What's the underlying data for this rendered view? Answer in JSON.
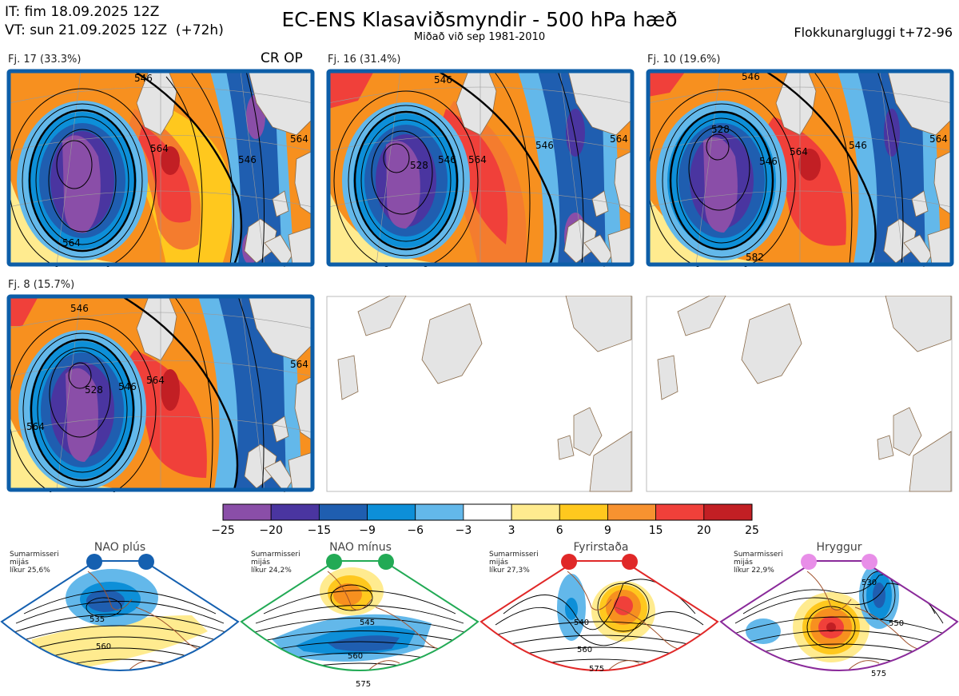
{
  "header": {
    "it": "IT: fim 18.09.2025 12Z",
    "vt": "VT: sun 21.09.2025 12Z  (+72h)",
    "title": "EC-ENS Klasaviðsmyndir - 500 hPa hæð",
    "subtitle": "Miðað við sep 1981-2010",
    "window": "Flokkunargluggi t+72-96"
  },
  "clusters": [
    {
      "label": "Fj. 17 (33.3%)",
      "badge": "CR OP",
      "contours": [
        "546",
        "564",
        "546",
        "564",
        "564"
      ]
    },
    {
      "label": "Fj. 16 (31.4%)",
      "badge": "",
      "contours": [
        "546",
        "528",
        "546",
        "564",
        "546",
        "564"
      ]
    },
    {
      "label": "Fj. 10 (19.6%)",
      "badge": "",
      "contours": [
        "546",
        "528",
        "546",
        "564",
        "546",
        "564",
        "582"
      ]
    },
    {
      "label": "Fj. 8 (15.7%)",
      "badge": "",
      "contours": [
        "546",
        "528",
        "546",
        "564",
        "564",
        "564"
      ]
    }
  ],
  "colorbar": {
    "ticks": [
      "−25",
      "−20",
      "−15",
      "−9",
      "−6",
      "−3",
      "3",
      "6",
      "9",
      "15",
      "20",
      "25"
    ],
    "colors": [
      "#8a4ea8",
      "#4a35a0",
      "#1f5eb0",
      "#0d8fd8",
      "#63b8ea",
      "#ffffff",
      "#ffeb8f",
      "#ffc81e",
      "#f79230",
      "#f0403a",
      "#c21f24"
    ]
  },
  "regimes": [
    {
      "name": "NAO plús",
      "note": [
        "Sumarmisseri",
        "mijás",
        "líkur 25,6%"
      ],
      "color": "#1560b0",
      "contours": [
        "535",
        "560"
      ]
    },
    {
      "name": "NAO mínus",
      "note": [
        "Sumarmisseri",
        "mijás",
        "líkur 24,2%"
      ],
      "color": "#22aa55",
      "contours": [
        "545",
        "560",
        "575"
      ]
    },
    {
      "name": "Fyrirstaða",
      "note": [
        "Sumarmisseri",
        "mijás",
        "líkur 27,3%"
      ],
      "color": "#e02828",
      "contours": [
        "540",
        "560",
        "575"
      ]
    },
    {
      "name": "Hryggur",
      "note": [
        "Sumarmisseri",
        "mijás",
        "líkur 22,9%"
      ],
      "color": "#8a2a9a",
      "contours": [
        "530",
        "550",
        "575"
      ]
    }
  ]
}
